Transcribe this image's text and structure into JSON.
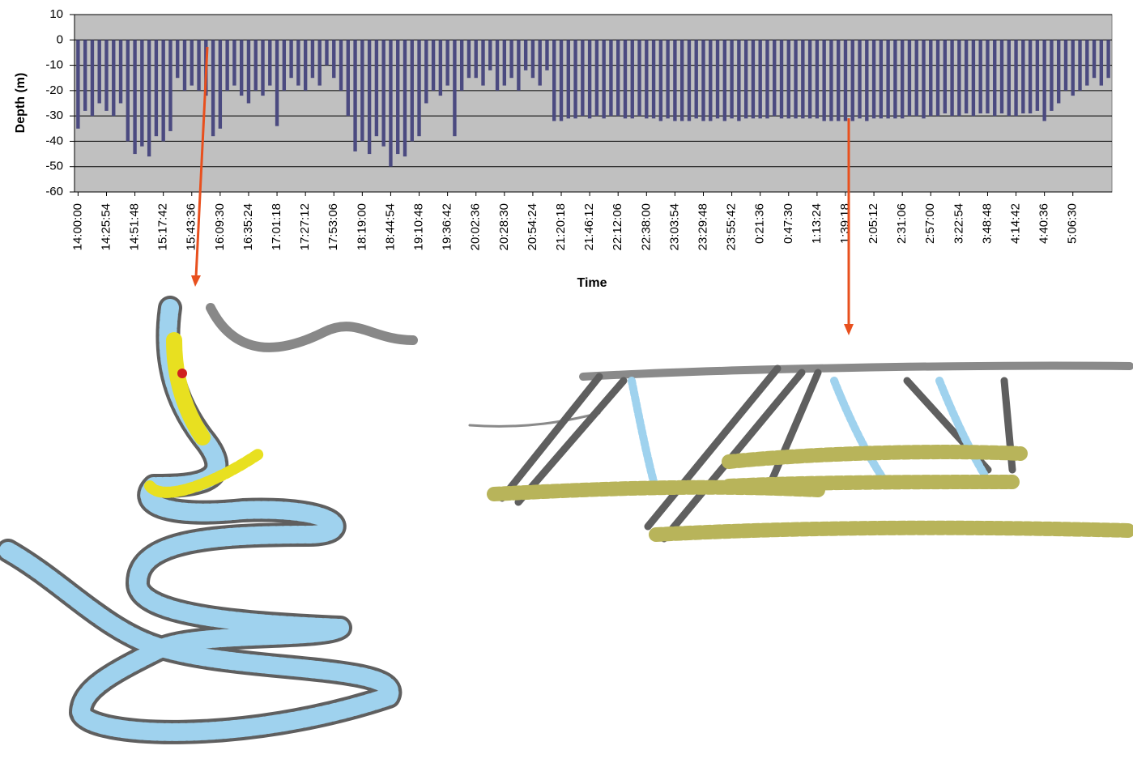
{
  "chart_data": {
    "type": "bar",
    "x_label": "Time",
    "y_label": "Depth (m)",
    "categories": [
      "14:00:00",
      null,
      null,
      null,
      "14:25:54",
      null,
      null,
      null,
      "14:51:48",
      null,
      null,
      null,
      "15:17:42",
      null,
      null,
      null,
      "15:43:36",
      null,
      null,
      null,
      "16:09:30",
      null,
      null,
      null,
      "16:35:24",
      null,
      null,
      null,
      "17:01:18",
      null,
      null,
      null,
      "17:27:12",
      null,
      null,
      null,
      "17:53:06",
      null,
      null,
      null,
      "18:19:00",
      null,
      null,
      null,
      "18:44:54",
      null,
      null,
      null,
      "19:10:48",
      null,
      null,
      null,
      "19:36:42",
      null,
      null,
      null,
      "20:02:36",
      null,
      null,
      null,
      "20:28:30",
      null,
      null,
      null,
      "20:54:24",
      null,
      null,
      null,
      "21:20:18",
      null,
      null,
      null,
      "21:46:12",
      null,
      null,
      null,
      "22:12:06",
      null,
      null,
      null,
      "22:38:00",
      null,
      null,
      null,
      "23:03:54",
      null,
      null,
      null,
      "23:29:48",
      null,
      null,
      null,
      "23:55:42",
      null,
      null,
      null,
      "0:21:36",
      null,
      null,
      null,
      "0:47:30",
      null,
      null,
      null,
      "1:13:24",
      null,
      null,
      null,
      "1:39:18",
      null,
      null,
      null,
      "2:05:12",
      null,
      null,
      null,
      "2:31:06",
      null,
      null,
      null,
      "2:57:00",
      null,
      null,
      null,
      "3:22:54",
      null,
      null,
      null,
      "3:48:48",
      null,
      null,
      null,
      "4:14:42",
      null,
      null,
      null,
      "4:40:36",
      null,
      null,
      null,
      "5:06:30",
      null,
      null,
      null,
      null,
      null
    ],
    "values": [
      -35,
      -28,
      -30,
      -25,
      -28,
      -30,
      -25,
      -40,
      -45,
      -42,
      -46,
      -38,
      -40,
      -36,
      -15,
      -20,
      -18,
      -20,
      -22,
      -38,
      -35,
      -20,
      -18,
      -22,
      -25,
      -20,
      -22,
      -18,
      -34,
      -20,
      -15,
      -18,
      -20,
      -15,
      -18,
      -10,
      -15,
      -20,
      -30,
      -44,
      -40,
      -45,
      -38,
      -42,
      -50,
      -45,
      -46,
      -40,
      -38,
      -25,
      -20,
      -22,
      -18,
      -38,
      -20,
      -15,
      -15,
      -18,
      -12,
      -20,
      -18,
      -15,
      -20,
      -12,
      -15,
      -18,
      -12,
      -32,
      -32,
      -31,
      -31,
      -30,
      -31,
      -30,
      -31,
      -30,
      -30,
      -31,
      -31,
      -30,
      -31,
      -31,
      -32,
      -31,
      -32,
      -32,
      -32,
      -31,
      -32,
      -32,
      -31,
      -32,
      -31,
      -32,
      -31,
      -31,
      -31,
      -31,
      -30,
      -31,
      -31,
      -31,
      -31,
      -31,
      -31,
      -32,
      -32,
      -32,
      -32,
      -32,
      -31,
      -32,
      -31,
      -31,
      -31,
      -31,
      -31,
      -30,
      -30,
      -31,
      -30,
      -30,
      -29,
      -30,
      -30,
      -29,
      -30,
      -29,
      -29,
      -30,
      -29,
      -30,
      -30,
      -29,
      -29,
      -28,
      -32,
      -28,
      -25,
      -20,
      -22,
      -20,
      -18,
      -15,
      -18,
      -15
    ],
    "color": "#4b4a80",
    "plot_background": "#c0c0c0",
    "ylim": [
      -60,
      10
    ],
    "yticks": [
      -60,
      -50,
      -40,
      -30,
      -20,
      -10,
      0,
      10
    ],
    "grid": true
  }
}
